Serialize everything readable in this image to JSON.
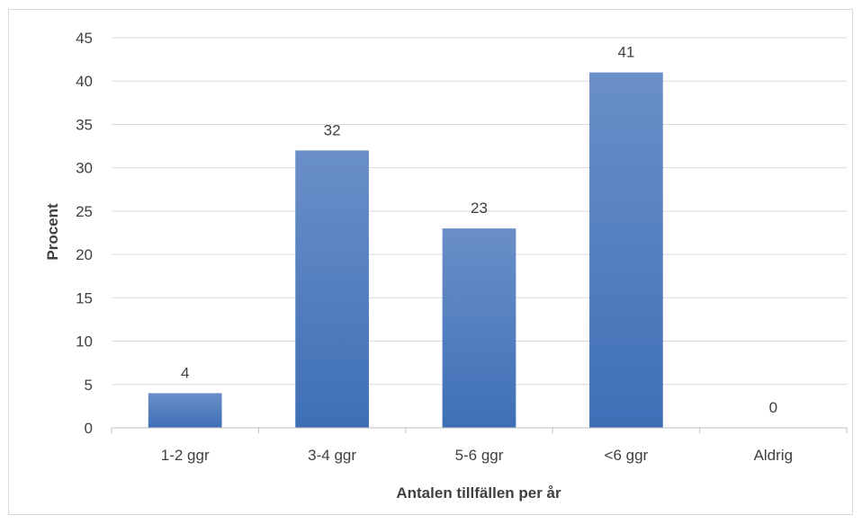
{
  "chart_data": {
    "type": "bar",
    "categories": [
      "1-2 ggr",
      "3-4 ggr",
      "5-6 ggr",
      "<6 ggr",
      "Aldrig"
    ],
    "values": [
      4,
      32,
      23,
      41,
      0
    ],
    "data_labels": [
      "4",
      "32",
      "23",
      "41",
      "0"
    ],
    "title": "",
    "xlabel": "Antalen tillfällen per år",
    "ylabel": "Procent",
    "ylim": [
      0,
      45
    ],
    "yticks": [
      0,
      5,
      10,
      15,
      20,
      25,
      30,
      35,
      40,
      45
    ],
    "ytick_labels": [
      "0",
      "5",
      "10",
      "15",
      "20",
      "25",
      "30",
      "35",
      "40",
      "45"
    ],
    "grid": true,
    "legend": "none",
    "colors": {
      "bar_top": "#6a8fc8",
      "bar_bottom": "#3e6fb6",
      "grid": "#d9d9d9",
      "axis": "#bfbfbf",
      "text": "#404040"
    }
  }
}
